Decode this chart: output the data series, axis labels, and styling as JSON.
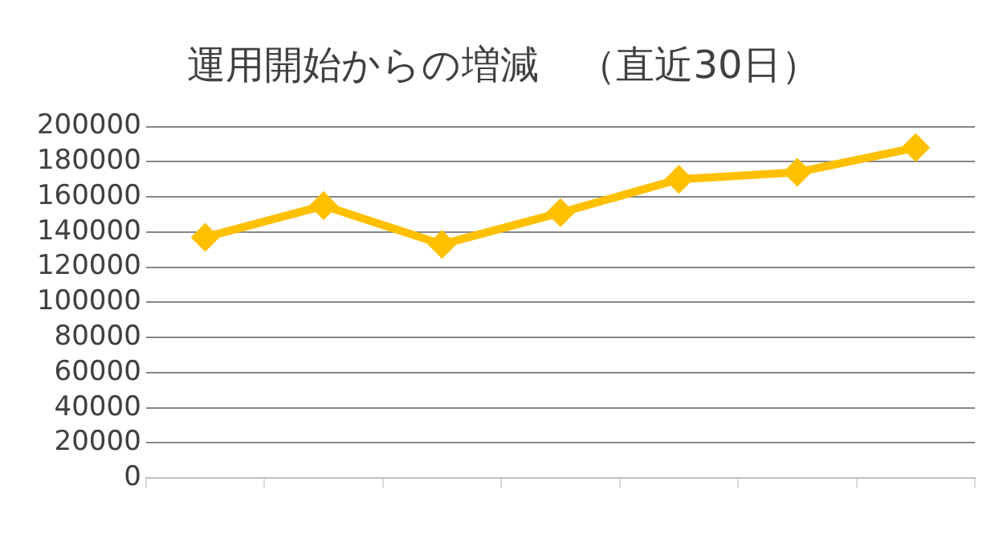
{
  "chart_data": {
    "type": "line",
    "title": "運用開始からの増減　（直近30日）",
    "categories": [
      null,
      null,
      null,
      null,
      null,
      null,
      null
    ],
    "series": [
      {
        "color": "#ffc000",
        "values": [
          137000,
          155000,
          133000,
          151000,
          170000,
          174000,
          188000
        ]
      }
    ],
    "ylim": [
      0,
      200000
    ],
    "yticks": [
      0,
      20000,
      40000,
      60000,
      80000,
      100000,
      120000,
      140000,
      160000,
      180000,
      200000
    ],
    "grid": "y",
    "legend": false,
    "marker": "diamond",
    "line_style": "solid"
  }
}
